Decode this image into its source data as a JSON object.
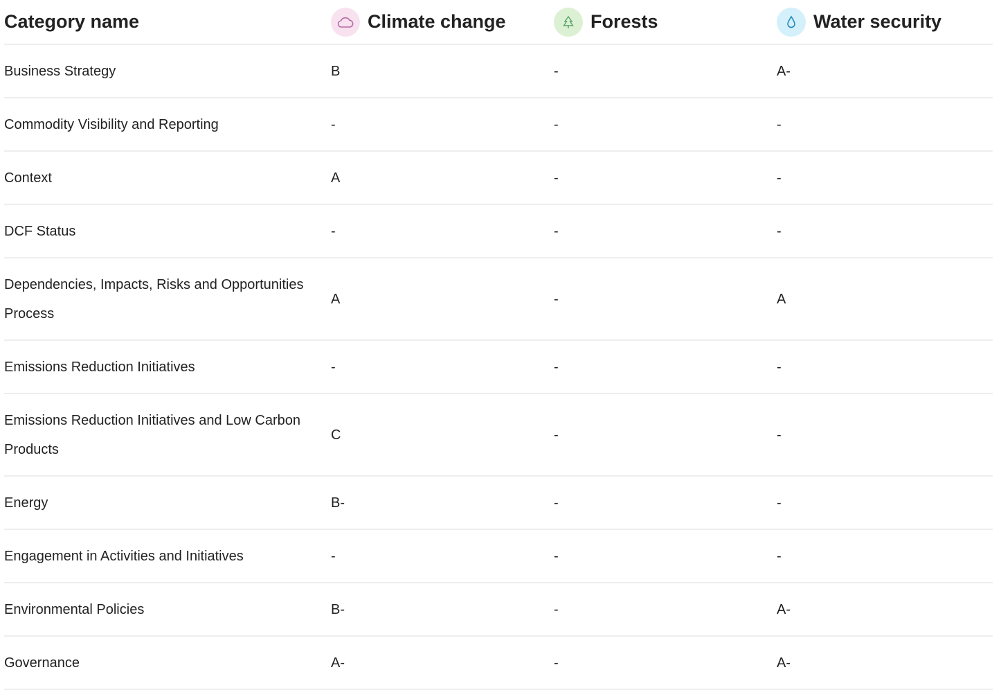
{
  "header": {
    "category": "Category name",
    "columns": [
      "Climate change",
      "Forests",
      "Water security"
    ]
  },
  "table": {
    "rows": [
      [
        "Business Strategy",
        "B",
        "-",
        "A-"
      ],
      [
        "Commodity Visibility and Reporting",
        "-",
        "-",
        "-"
      ],
      [
        "Context",
        "A",
        "-",
        "-"
      ],
      [
        "DCF Status",
        "-",
        "-",
        "-"
      ],
      [
        "Dependencies, Impacts, Risks and Opportunities Process",
        "A",
        "-",
        "A"
      ],
      [
        "Emissions Reduction Initiatives",
        "-",
        "-",
        "-"
      ],
      [
        "Emissions Reduction Initiatives and Low Carbon Products",
        "C",
        "-",
        "-"
      ],
      [
        "Energy",
        "B-",
        "-",
        "-"
      ],
      [
        "Engagement in Activities and Initiatives",
        "-",
        "-",
        "-"
      ],
      [
        "Environmental Policies",
        "B-",
        "-",
        "A-"
      ],
      [
        "Governance",
        "A-",
        "-",
        "A-"
      ]
    ]
  }
}
